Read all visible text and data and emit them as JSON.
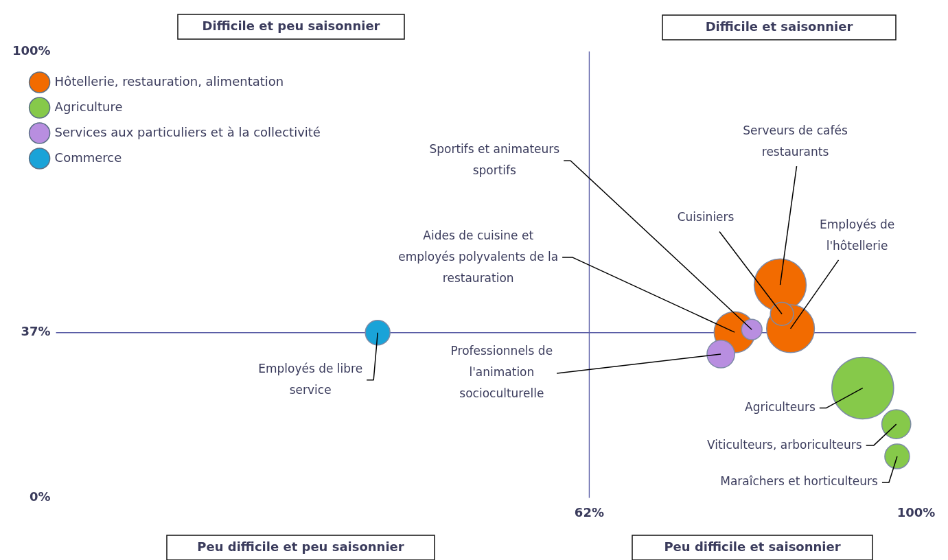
{
  "chart_data": {
    "type": "bubble",
    "xlim": [
      0,
      100
    ],
    "xticks": [
      {
        "value": 62,
        "label": "62%"
      },
      {
        "value": 100,
        "label": "100%"
      }
    ],
    "ylim": [
      0,
      100
    ],
    "yticks": [
      {
        "value": 0,
        "label": "0%"
      },
      {
        "value": 37,
        "label": "37%"
      },
      {
        "value": 100,
        "label": "100%"
      }
    ],
    "legend": "top left",
    "series": [
      {
        "name": "Hôtellerie, restauration, alimentation",
        "color": "#f26b00",
        "x": [
          84.2,
          85.4,
          84.4,
          78.9
        ],
        "values": [
          47.7,
          37.9,
          41.2,
          37.1
        ],
        "sizes": [
          0.71,
          0.6,
          0.14,
          0.44
        ]
      },
      {
        "name": "Agriculture",
        "color": "#86c94a",
        "x": [
          93.8,
          97.7,
          97.8
        ],
        "values": [
          24.6,
          16.5,
          9.3
        ],
        "sizes": [
          1,
          0.22,
          0.16
        ]
      },
      {
        "name": "Services aux particuliers et à la collectivité",
        "color": "#b88ee0",
        "x": [
          80.9,
          77.3
        ],
        "values": [
          37.7,
          32.2
        ],
        "sizes": [
          0.11,
          0.2
        ]
      },
      {
        "name": "Commerce",
        "color": "#1aa3d8",
        "x": [
          37.4
        ],
        "values": [
          37
        ],
        "sizes": [
          0.16
        ]
      }
    ],
    "ref_lines": [
      {
        "axis": "x",
        "value": 62,
        "color": "#5b5ea6"
      },
      {
        "axis": "y",
        "value": 37,
        "color": "#5b5ea6"
      }
    ],
    "annotations": [
      {
        "text": "Serveurs de cafés restaurants",
        "x": 84.2,
        "y": 47.7
      },
      {
        "text": "Employés de l'hôtellerie",
        "x": 85.4,
        "y": 37.9
      },
      {
        "text": "Cuisiniers",
        "x": 84.4,
        "y": 41.2
      },
      {
        "text": "Sportifs et animateurs sportifs",
        "x": 80.9,
        "y": 37.7
      },
      {
        "text": "Aides de cuisine et employés polyvalents de la restauration",
        "x": 78.9,
        "y": 37.1
      },
      {
        "text": "Professionnels de l'animation socioculturelle",
        "x": 77.3,
        "y": 32.2
      },
      {
        "text": "Employés de libre service",
        "x": 37.4,
        "y": 37
      },
      {
        "text": "Agriculteurs",
        "x": 93.8,
        "y": 24.6
      },
      {
        "text": "Viticulteurs, arboriculteurs",
        "x": 97.7,
        "y": 16.5
      },
      {
        "text": "Maraîchers et horticulteurs",
        "x": 97.8,
        "y": 9.3
      },
      "Difficile et peu saisonnier",
      "Difficile et saisonnier",
      "Peu difficile et peu saisonnier",
      "Peu difficile et saisonnier"
    ]
  }
}
